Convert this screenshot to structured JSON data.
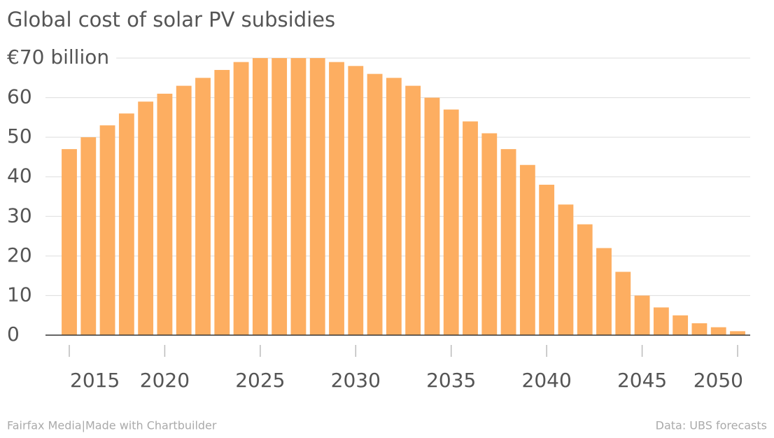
{
  "chart_data": {
    "type": "bar",
    "title": "Global cost of solar PV subsidies",
    "x": [
      2015,
      2016,
      2017,
      2018,
      2019,
      2020,
      2021,
      2022,
      2023,
      2024,
      2025,
      2026,
      2027,
      2028,
      2029,
      2030,
      2031,
      2032,
      2033,
      2034,
      2035,
      2036,
      2037,
      2038,
      2039,
      2040,
      2041,
      2042,
      2043,
      2044,
      2045,
      2046,
      2047,
      2048,
      2049,
      2050
    ],
    "values": [
      47,
      50,
      53,
      56,
      59,
      61,
      63,
      65,
      67,
      69,
      70,
      70,
      70,
      70,
      69,
      68,
      66,
      65,
      63,
      60,
      57,
      54,
      51,
      47,
      43,
      38,
      33,
      28,
      22,
      16,
      10,
      7,
      5,
      3,
      2,
      1
    ],
    "color": "#fdae61",
    "xlim": [
      2015,
      2050
    ],
    "xticks": [
      2015,
      2020,
      2025,
      2030,
      2035,
      2040,
      2045,
      2050
    ],
    "ylim": [
      0,
      70
    ],
    "yticks": [
      0,
      10,
      20,
      30,
      40,
      50,
      60,
      {
        "value": 70,
        "label": "€70 billion"
      }
    ],
    "grid": true,
    "footer_left": "Fairfax Media|Made with Chartbuilder",
    "footer_right": "Data: UBS forecasts"
  }
}
